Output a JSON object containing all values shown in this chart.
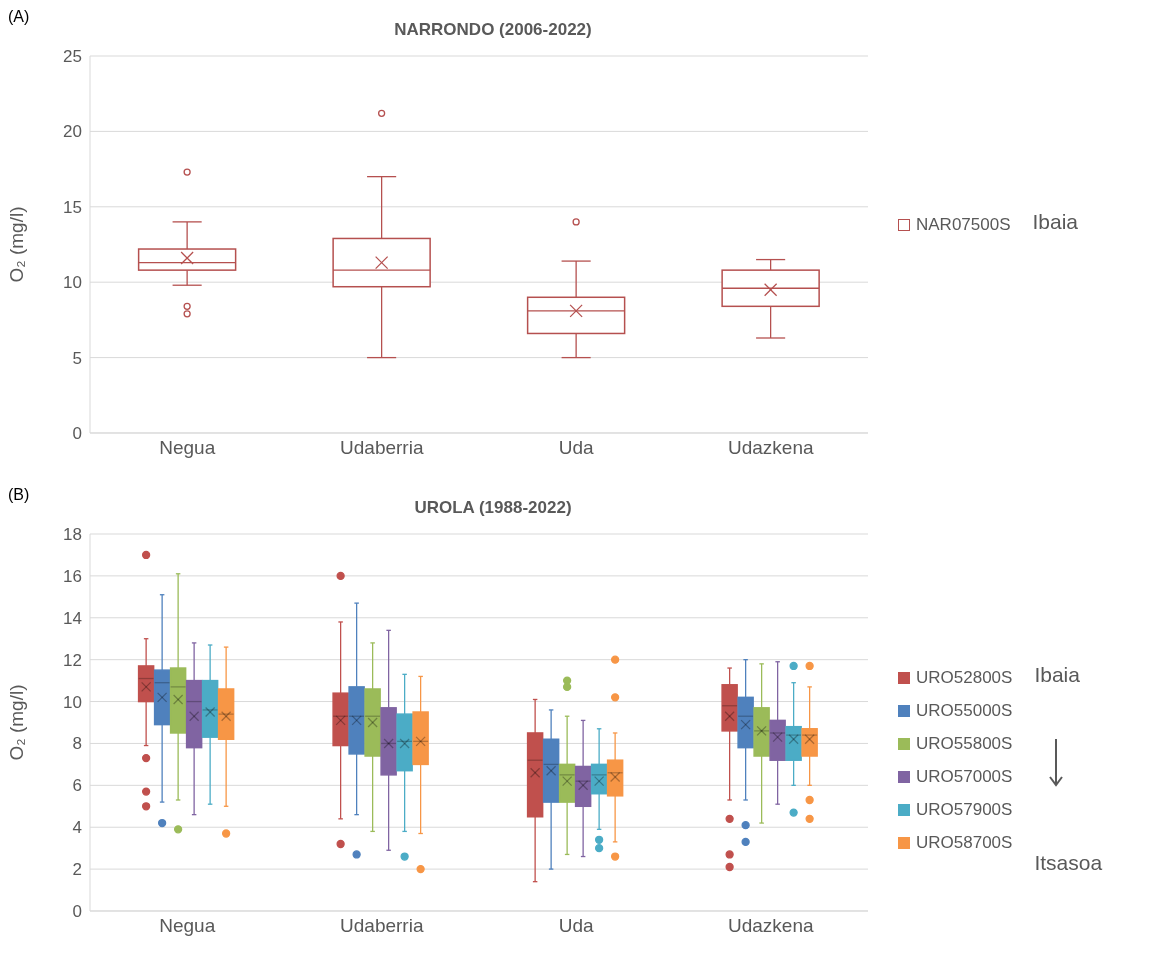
{
  "chart_data": [
    {
      "type": "box",
      "title": "NARRONDO (2006-2022)",
      "ylabel": "O₂ (mg/l)",
      "categories": [
        "Negua",
        "Udaberria",
        "Uda",
        "Udazkena"
      ],
      "ylim": [
        0,
        25
      ],
      "yticks": [
        0,
        5,
        10,
        15,
        20,
        25
      ],
      "grid": "y",
      "legend": "right",
      "annotations": [
        "(A)",
        "Ibaia"
      ],
      "series": [
        {
          "name": "NAR07500S",
          "color": "#b5504f",
          "boxes": [
            {
              "low": 9.8,
              "q1": 10.8,
              "median": 11.3,
              "q3": 12.2,
              "high": 14,
              "mean": 11.6,
              "outliers": [
                17.3,
                8.4,
                7.9
              ]
            },
            {
              "low": 5,
              "q1": 9.7,
              "median": 10.8,
              "q3": 12.9,
              "high": 17,
              "mean": 11.3,
              "outliers": [
                21.2
              ]
            },
            {
              "low": 5,
              "q1": 6.6,
              "median": 8.1,
              "q3": 9,
              "high": 11.4,
              "mean": 8.1,
              "outliers": [
                14
              ]
            },
            {
              "low": 6.3,
              "q1": 8.4,
              "median": 9.6,
              "q3": 10.8,
              "high": 11.5,
              "mean": 9.5
            }
          ]
        }
      ]
    },
    {
      "type": "box",
      "title": "UROLA (1988-2022)",
      "ylabel": "O₂ (mg/l)",
      "categories": [
        "Negua",
        "Udaberria",
        "Uda",
        "Udazkena"
      ],
      "ylim": [
        0,
        18
      ],
      "yticks": [
        0,
        2,
        4,
        6,
        8,
        10,
        12,
        14,
        16,
        18
      ],
      "grid": "y",
      "legend": "right",
      "annotations": [
        "(B)",
        "Ibaia",
        "Itsasoa"
      ],
      "series": [
        {
          "name": "URO52800S",
          "color": "#c0504d",
          "boxes": [
            {
              "low": 7.9,
              "q1": 10,
              "median": 11.1,
              "q3": 11.7,
              "high": 13,
              "mean": 10.7,
              "outliers": [
                17,
                7.3,
                5.7,
                5
              ]
            },
            {
              "low": 4.4,
              "q1": 7.9,
              "median": 9.3,
              "q3": 10.4,
              "high": 13.8,
              "mean": 9.1,
              "outliers": [
                16,
                3.2
              ]
            },
            {
              "low": 1.4,
              "q1": 4.5,
              "median": 7.2,
              "q3": 8.5,
              "high": 10.1,
              "mean": 6.6
            },
            {
              "low": 5.3,
              "q1": 8.6,
              "median": 9.8,
              "q3": 10.8,
              "high": 11.6,
              "mean": 9.3,
              "outliers": [
                4.4,
                2.7,
                2.1
              ]
            }
          ]
        },
        {
          "name": "URO55000S",
          "color": "#4f81bd",
          "boxes": [
            {
              "low": 5.2,
              "q1": 8.9,
              "median": 10.9,
              "q3": 11.5,
              "high": 15.1,
              "mean": 10.2,
              "outliers": [
                4.2
              ]
            },
            {
              "low": 4.6,
              "q1": 7.5,
              "median": 9.3,
              "q3": 10.7,
              "high": 14.7,
              "mean": 9.1,
              "outliers": [
                2.7
              ]
            },
            {
              "low": 2,
              "q1": 5.2,
              "median": 7,
              "q3": 8.2,
              "high": 9.6,
              "mean": 6.7
            },
            {
              "low": 5.3,
              "q1": 7.8,
              "median": 9.3,
              "q3": 10.2,
              "high": 12,
              "mean": 8.9,
              "outliers": [
                4.1,
                3.3
              ]
            }
          ]
        },
        {
          "name": "URO55800S",
          "color": "#9bbb59",
          "boxes": [
            {
              "low": 5.3,
              "q1": 8.5,
              "median": 10.7,
              "q3": 11.6,
              "high": 16.1,
              "mean": 10.1,
              "outliers": [
                3.9
              ]
            },
            {
              "low": 3.8,
              "q1": 7.4,
              "median": 9.3,
              "q3": 10.6,
              "high": 12.8,
              "mean": 9
            },
            {
              "low": 2.7,
              "q1": 5.2,
              "median": 6.5,
              "q3": 7,
              "high": 9.3,
              "mean": 6.2,
              "outliers": [
                11,
                10.7
              ]
            },
            {
              "low": 4.2,
              "q1": 7.4,
              "median": 8.6,
              "q3": 9.7,
              "high": 11.8,
              "mean": 8.6
            }
          ]
        },
        {
          "name": "URO57000S",
          "color": "#8064a2",
          "boxes": [
            {
              "low": 4.6,
              "q1": 7.8,
              "median": 10,
              "q3": 11,
              "high": 12.8,
              "mean": 9.3
            },
            {
              "low": 2.9,
              "q1": 6.5,
              "median": 8,
              "q3": 9.7,
              "high": 13.4,
              "mean": 8
            },
            {
              "low": 2.6,
              "q1": 5,
              "median": 6.2,
              "q3": 6.9,
              "high": 9.1,
              "mean": 6
            },
            {
              "low": 5.1,
              "q1": 7.2,
              "median": 8.5,
              "q3": 9.1,
              "high": 11.9,
              "mean": 8.3
            }
          ]
        },
        {
          "name": "URO57900S",
          "color": "#4bacc6",
          "boxes": [
            {
              "low": 5.1,
              "q1": 8.3,
              "median": 9.6,
              "q3": 11,
              "high": 12.7,
              "mean": 9.5
            },
            {
              "low": 3.8,
              "q1": 6.7,
              "median": 8.1,
              "q3": 9.4,
              "high": 11.3,
              "mean": 8,
              "outliers": [
                2.6
              ]
            },
            {
              "low": 3.9,
              "q1": 5.6,
              "median": 6.5,
              "q3": 7,
              "high": 8.7,
              "mean": 6.2,
              "outliers": [
                3.4,
                3
              ]
            },
            {
              "low": 6,
              "q1": 7.2,
              "median": 8.4,
              "q3": 8.8,
              "high": 10.9,
              "mean": 8.2,
              "outliers": [
                11.7,
                4.7
              ]
            }
          ]
        },
        {
          "name": "URO58700S",
          "color": "#f79646",
          "boxes": [
            {
              "low": 5,
              "q1": 8.2,
              "median": 9.4,
              "q3": 10.6,
              "high": 12.6,
              "mean": 9.3,
              "outliers": [
                3.7
              ]
            },
            {
              "low": 3.7,
              "q1": 7,
              "median": 8.1,
              "q3": 9.5,
              "high": 11.2,
              "mean": 8.1,
              "outliers": [
                2
              ]
            },
            {
              "low": 3.3,
              "q1": 5.5,
              "median": 6.6,
              "q3": 7.2,
              "high": 8.5,
              "mean": 6.4,
              "outliers": [
                12,
                10.2,
                2.6
              ]
            },
            {
              "low": 6,
              "q1": 7.4,
              "median": 8.4,
              "q3": 8.7,
              "high": 10.7,
              "mean": 8.2,
              "outliers": [
                11.7,
                5.3,
                4.4
              ]
            }
          ]
        }
      ]
    }
  ]
}
